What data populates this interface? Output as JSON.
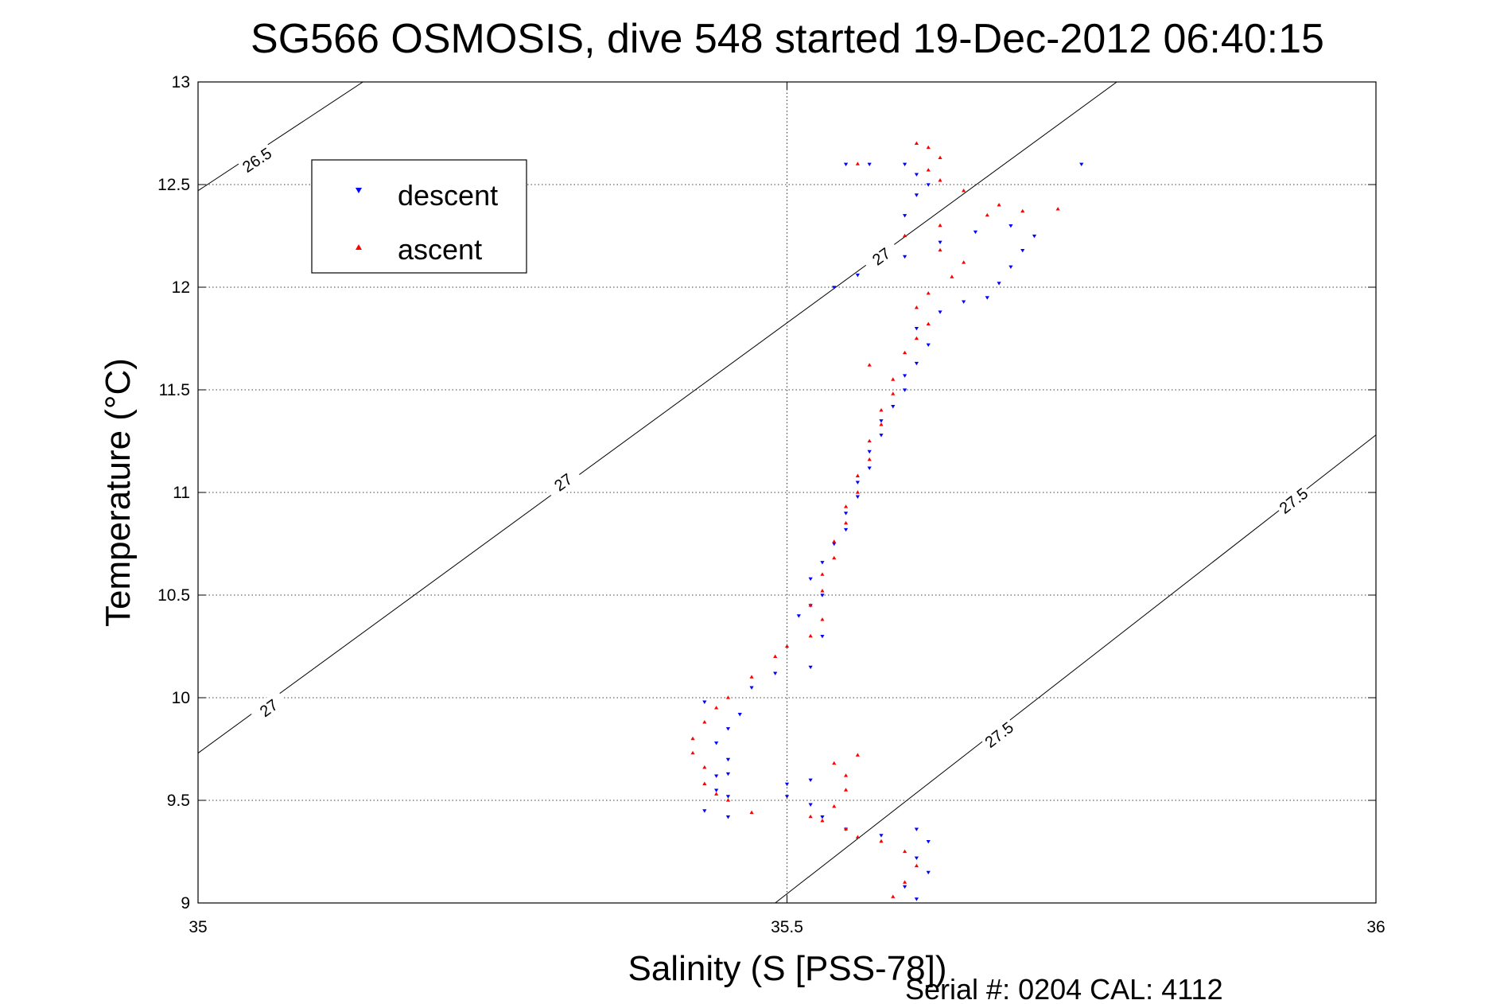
{
  "chart_data": {
    "type": "scatter",
    "title": "SG566 OSMOSIS, dive 548 started 19-Dec-2012 06:40:15",
    "xlabel": "Salinity (S [PSS-78])",
    "ylabel": "Temperature (°C)",
    "xlim": [
      35,
      36
    ],
    "ylim": [
      9,
      13
    ],
    "xticks": [
      35,
      35.5,
      36
    ],
    "xtick_labels": [
      "35",
      "35.5",
      "36"
    ],
    "yticks": [
      9,
      9.5,
      10,
      10.5,
      11,
      11.5,
      12,
      12.5,
      13
    ],
    "ytick_labels": [
      "9",
      "9.5",
      "10",
      "10.5",
      "11",
      "11.5",
      "12",
      "12.5",
      "13"
    ],
    "grid": true,
    "legend_position": "top-left",
    "series": [
      {
        "name": "descent",
        "marker": "triangle-down",
        "color": "#0000ff",
        "points": [
          [
            35.61,
            9.02
          ],
          [
            35.6,
            9.08
          ],
          [
            35.62,
            9.15
          ],
          [
            35.61,
            9.22
          ],
          [
            35.62,
            9.3
          ],
          [
            35.61,
            9.36
          ],
          [
            35.58,
            9.33
          ],
          [
            35.55,
            9.36
          ],
          [
            35.53,
            9.42
          ],
          [
            35.52,
            9.48
          ],
          [
            35.5,
            9.52
          ],
          [
            35.45,
            9.63
          ],
          [
            35.52,
            9.6
          ],
          [
            35.5,
            9.58
          ],
          [
            35.44,
            9.55
          ],
          [
            35.45,
            9.42
          ],
          [
            35.43,
            9.45
          ],
          [
            35.45,
            9.52
          ],
          [
            35.44,
            9.62
          ],
          [
            35.45,
            9.7
          ],
          [
            35.44,
            9.78
          ],
          [
            35.45,
            9.85
          ],
          [
            35.46,
            9.92
          ],
          [
            35.43,
            9.98
          ],
          [
            35.47,
            10.05
          ],
          [
            35.49,
            10.12
          ],
          [
            35.52,
            10.15
          ],
          [
            35.53,
            10.3
          ],
          [
            35.51,
            10.4
          ],
          [
            35.52,
            10.45
          ],
          [
            35.53,
            10.5
          ],
          [
            35.52,
            10.58
          ],
          [
            35.53,
            10.66
          ],
          [
            35.54,
            10.75
          ],
          [
            35.55,
            10.82
          ],
          [
            35.55,
            10.9
          ],
          [
            35.56,
            10.98
          ],
          [
            35.56,
            11.05
          ],
          [
            35.57,
            11.12
          ],
          [
            35.57,
            11.2
          ],
          [
            35.58,
            11.28
          ],
          [
            35.58,
            11.35
          ],
          [
            35.59,
            11.42
          ],
          [
            35.6,
            11.5
          ],
          [
            35.6,
            11.57
          ],
          [
            35.61,
            11.63
          ],
          [
            35.62,
            11.72
          ],
          [
            35.61,
            11.8
          ],
          [
            35.63,
            11.88
          ],
          [
            35.65,
            11.93
          ],
          [
            35.67,
            11.95
          ],
          [
            35.68,
            12.02
          ],
          [
            35.69,
            12.1
          ],
          [
            35.7,
            12.18
          ],
          [
            35.71,
            12.25
          ],
          [
            35.69,
            12.3
          ],
          [
            35.66,
            12.27
          ],
          [
            35.63,
            12.22
          ],
          [
            35.6,
            12.15
          ],
          [
            35.56,
            12.06
          ],
          [
            35.54,
            12.0
          ],
          [
            35.6,
            12.35
          ],
          [
            35.61,
            12.45
          ],
          [
            35.62,
            12.5
          ],
          [
            35.61,
            12.55
          ],
          [
            35.6,
            12.6
          ],
          [
            35.57,
            12.6
          ],
          [
            35.55,
            12.6
          ],
          [
            35.75,
            12.6
          ]
        ]
      },
      {
        "name": "ascent",
        "marker": "triangle-up",
        "color": "#ff0000",
        "points": [
          [
            35.59,
            9.03
          ],
          [
            35.6,
            9.1
          ],
          [
            35.61,
            9.18
          ],
          [
            35.6,
            9.25
          ],
          [
            35.58,
            9.3
          ],
          [
            35.56,
            9.32
          ],
          [
            35.55,
            9.36
          ],
          [
            35.53,
            9.4
          ],
          [
            35.52,
            9.42
          ],
          [
            35.54,
            9.47
          ],
          [
            35.55,
            9.55
          ],
          [
            35.55,
            9.62
          ],
          [
            35.54,
            9.68
          ],
          [
            35.56,
            9.72
          ],
          [
            35.47,
            9.44
          ],
          [
            35.45,
            9.5
          ],
          [
            35.44,
            9.53
          ],
          [
            35.43,
            9.58
          ],
          [
            35.43,
            9.66
          ],
          [
            35.42,
            9.73
          ],
          [
            35.42,
            9.8
          ],
          [
            35.43,
            9.88
          ],
          [
            35.44,
            9.95
          ],
          [
            35.45,
            10.0
          ],
          [
            35.47,
            10.1
          ],
          [
            35.49,
            10.2
          ],
          [
            35.5,
            10.25
          ],
          [
            35.52,
            10.3
          ],
          [
            35.53,
            10.38
          ],
          [
            35.52,
            10.45
          ],
          [
            35.53,
            10.52
          ],
          [
            35.53,
            10.6
          ],
          [
            35.54,
            10.68
          ],
          [
            35.54,
            10.76
          ],
          [
            35.55,
            10.85
          ],
          [
            35.55,
            10.93
          ],
          [
            35.56,
            11.0
          ],
          [
            35.56,
            11.08
          ],
          [
            35.57,
            11.16
          ],
          [
            35.57,
            11.25
          ],
          [
            35.58,
            11.33
          ],
          [
            35.58,
            11.4
          ],
          [
            35.59,
            11.48
          ],
          [
            35.59,
            11.55
          ],
          [
            35.57,
            11.62
          ],
          [
            35.6,
            11.68
          ],
          [
            35.61,
            11.75
          ],
          [
            35.62,
            11.82
          ],
          [
            35.61,
            11.9
          ],
          [
            35.62,
            11.97
          ],
          [
            35.64,
            12.05
          ],
          [
            35.65,
            12.12
          ],
          [
            35.63,
            12.18
          ],
          [
            35.6,
            12.25
          ],
          [
            35.63,
            12.3
          ],
          [
            35.67,
            12.35
          ],
          [
            35.7,
            12.37
          ],
          [
            35.73,
            12.38
          ],
          [
            35.68,
            12.4
          ],
          [
            35.65,
            12.47
          ],
          [
            35.63,
            12.52
          ],
          [
            35.62,
            12.57
          ],
          [
            35.63,
            12.63
          ],
          [
            35.62,
            12.68
          ],
          [
            35.61,
            12.7
          ],
          [
            35.56,
            12.6
          ]
        ]
      }
    ],
    "density_contours": [
      {
        "label": "26.5",
        "line": [
          [
            35,
            12.47
          ],
          [
            35.14,
            13
          ]
        ],
        "label_positions": [
          [
            35.05,
            12.62
          ]
        ]
      },
      {
        "label": "27",
        "line": [
          [
            35,
            9.73
          ],
          [
            35.78,
            13
          ]
        ],
        "label_positions": [
          [
            35.06,
            9.95
          ],
          [
            35.31,
            11.05
          ],
          [
            35.58,
            12.15
          ]
        ]
      },
      {
        "label": "27.5",
        "line": [
          [
            35.49,
            9
          ],
          [
            36,
            11.28
          ]
        ],
        "label_positions": [
          [
            35.68,
            9.82
          ],
          [
            35.93,
            10.96
          ]
        ]
      }
    ]
  },
  "legend": {
    "descent_label": "descent",
    "ascent_label": "ascent"
  },
  "footer": {
    "serial_text": "Serial #: 0204  CAL: 4112"
  }
}
